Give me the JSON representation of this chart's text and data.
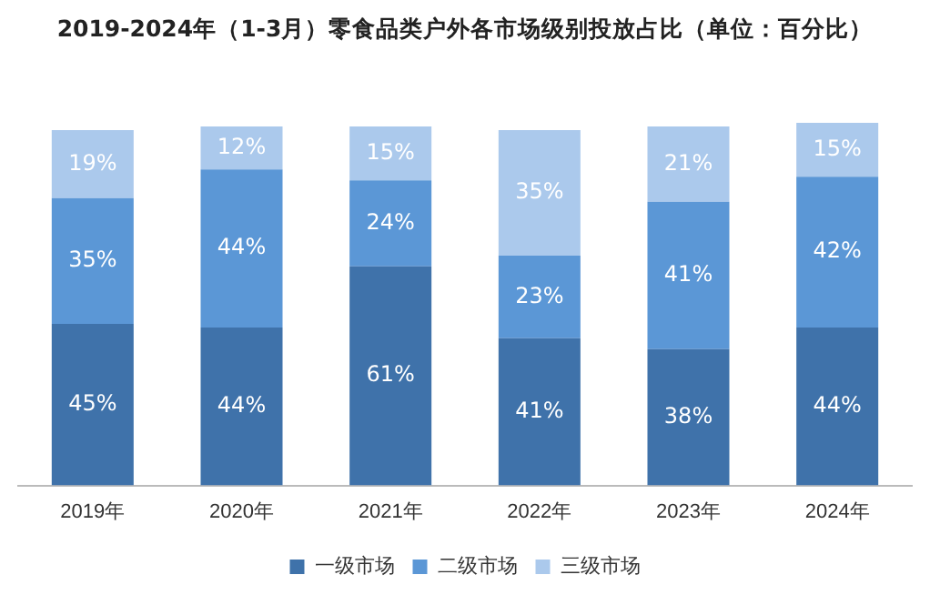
{
  "chart_data": {
    "type": "bar",
    "title": "2019-2024年（1-3月）零食品类户外各市场级别投放占比（单位：百分比）",
    "categories": [
      "2019年",
      "2020年",
      "2021年",
      "2022年",
      "2023年",
      "2024年"
    ],
    "stacked": true,
    "legend": "bottom",
    "grid": false,
    "tick_labels": "x",
    "series": [
      {
        "name": "一级市场",
        "color": "#3f72aa",
        "values": [
          45,
          44,
          61,
          41,
          38,
          44
        ],
        "value_labels": [
          "45%",
          "44%",
          "61%",
          "41%",
          "38%",
          "44%"
        ]
      },
      {
        "name": "二级市场",
        "color": "#5b97d6",
        "values": [
          35,
          44,
          24,
          23,
          41,
          42
        ],
        "value_labels": [
          "35%",
          "44%",
          "24%",
          "23%",
          "41%",
          "42%"
        ]
      },
      {
        "name": "三级市场",
        "color": "#abc9ec",
        "values": [
          19,
          12,
          15,
          35,
          21,
          15
        ],
        "value_labels": [
          "19%",
          "12%",
          "15%",
          "35%",
          "21%",
          "15%"
        ]
      }
    ]
  }
}
